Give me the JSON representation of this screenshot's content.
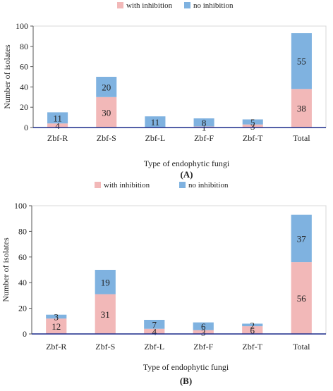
{
  "colors": {
    "with": "#f2b8b8",
    "no": "#7fb2e0",
    "axis": "#1a2a8a",
    "text": "#222222"
  },
  "chart_data": [
    {
      "type": "bar",
      "stacked": true,
      "panel_label": "(A)",
      "categories": [
        "Zbf-R",
        "Zbf-S",
        "Zbf-L",
        "Zbf-F",
        "Zbf-T",
        "Total"
      ],
      "series": [
        {
          "name": "with inhibition",
          "values": [
            4,
            30,
            0,
            1,
            3,
            38
          ],
          "labels": [
            "4",
            "30",
            "",
            "1",
            "3",
            "38"
          ]
        },
        {
          "name": "no inhibition",
          "values": [
            11,
            20,
            11,
            8,
            5,
            55
          ],
          "labels": [
            "11",
            "20",
            "11",
            "8",
            "5",
            "55"
          ]
        }
      ],
      "xlabel": "Type of endophytic fungi",
      "ylabel": "Number of isolates",
      "ylim": [
        0,
        100
      ],
      "yticks": [
        "0",
        "20",
        "40",
        "60",
        "80",
        "100"
      ],
      "legend_position": "top-center",
      "grid": false
    },
    {
      "type": "bar",
      "stacked": true,
      "panel_label": "(B)",
      "categories": [
        "Zbf-R",
        "Zbf-S",
        "Zbf-L",
        "Zbf-F",
        "Zbf-T",
        "Total"
      ],
      "series": [
        {
          "name": "with inhibition",
          "values": [
            12,
            31,
            4,
            3,
            6,
            56
          ],
          "labels": [
            "12",
            "31",
            "4",
            "3",
            "6",
            "56"
          ]
        },
        {
          "name": "no inhibition",
          "values": [
            3,
            19,
            7,
            6,
            2,
            37
          ],
          "labels": [
            "3",
            "19",
            "7",
            "6",
            "2",
            "37"
          ]
        }
      ],
      "xlabel": "Type of endophytic fungi",
      "ylabel": "Number of isolates",
      "ylim": [
        0,
        100
      ],
      "yticks": [
        "0",
        "20",
        "40",
        "60",
        "80",
        "100"
      ],
      "legend_position": "top-center",
      "grid": false
    }
  ]
}
